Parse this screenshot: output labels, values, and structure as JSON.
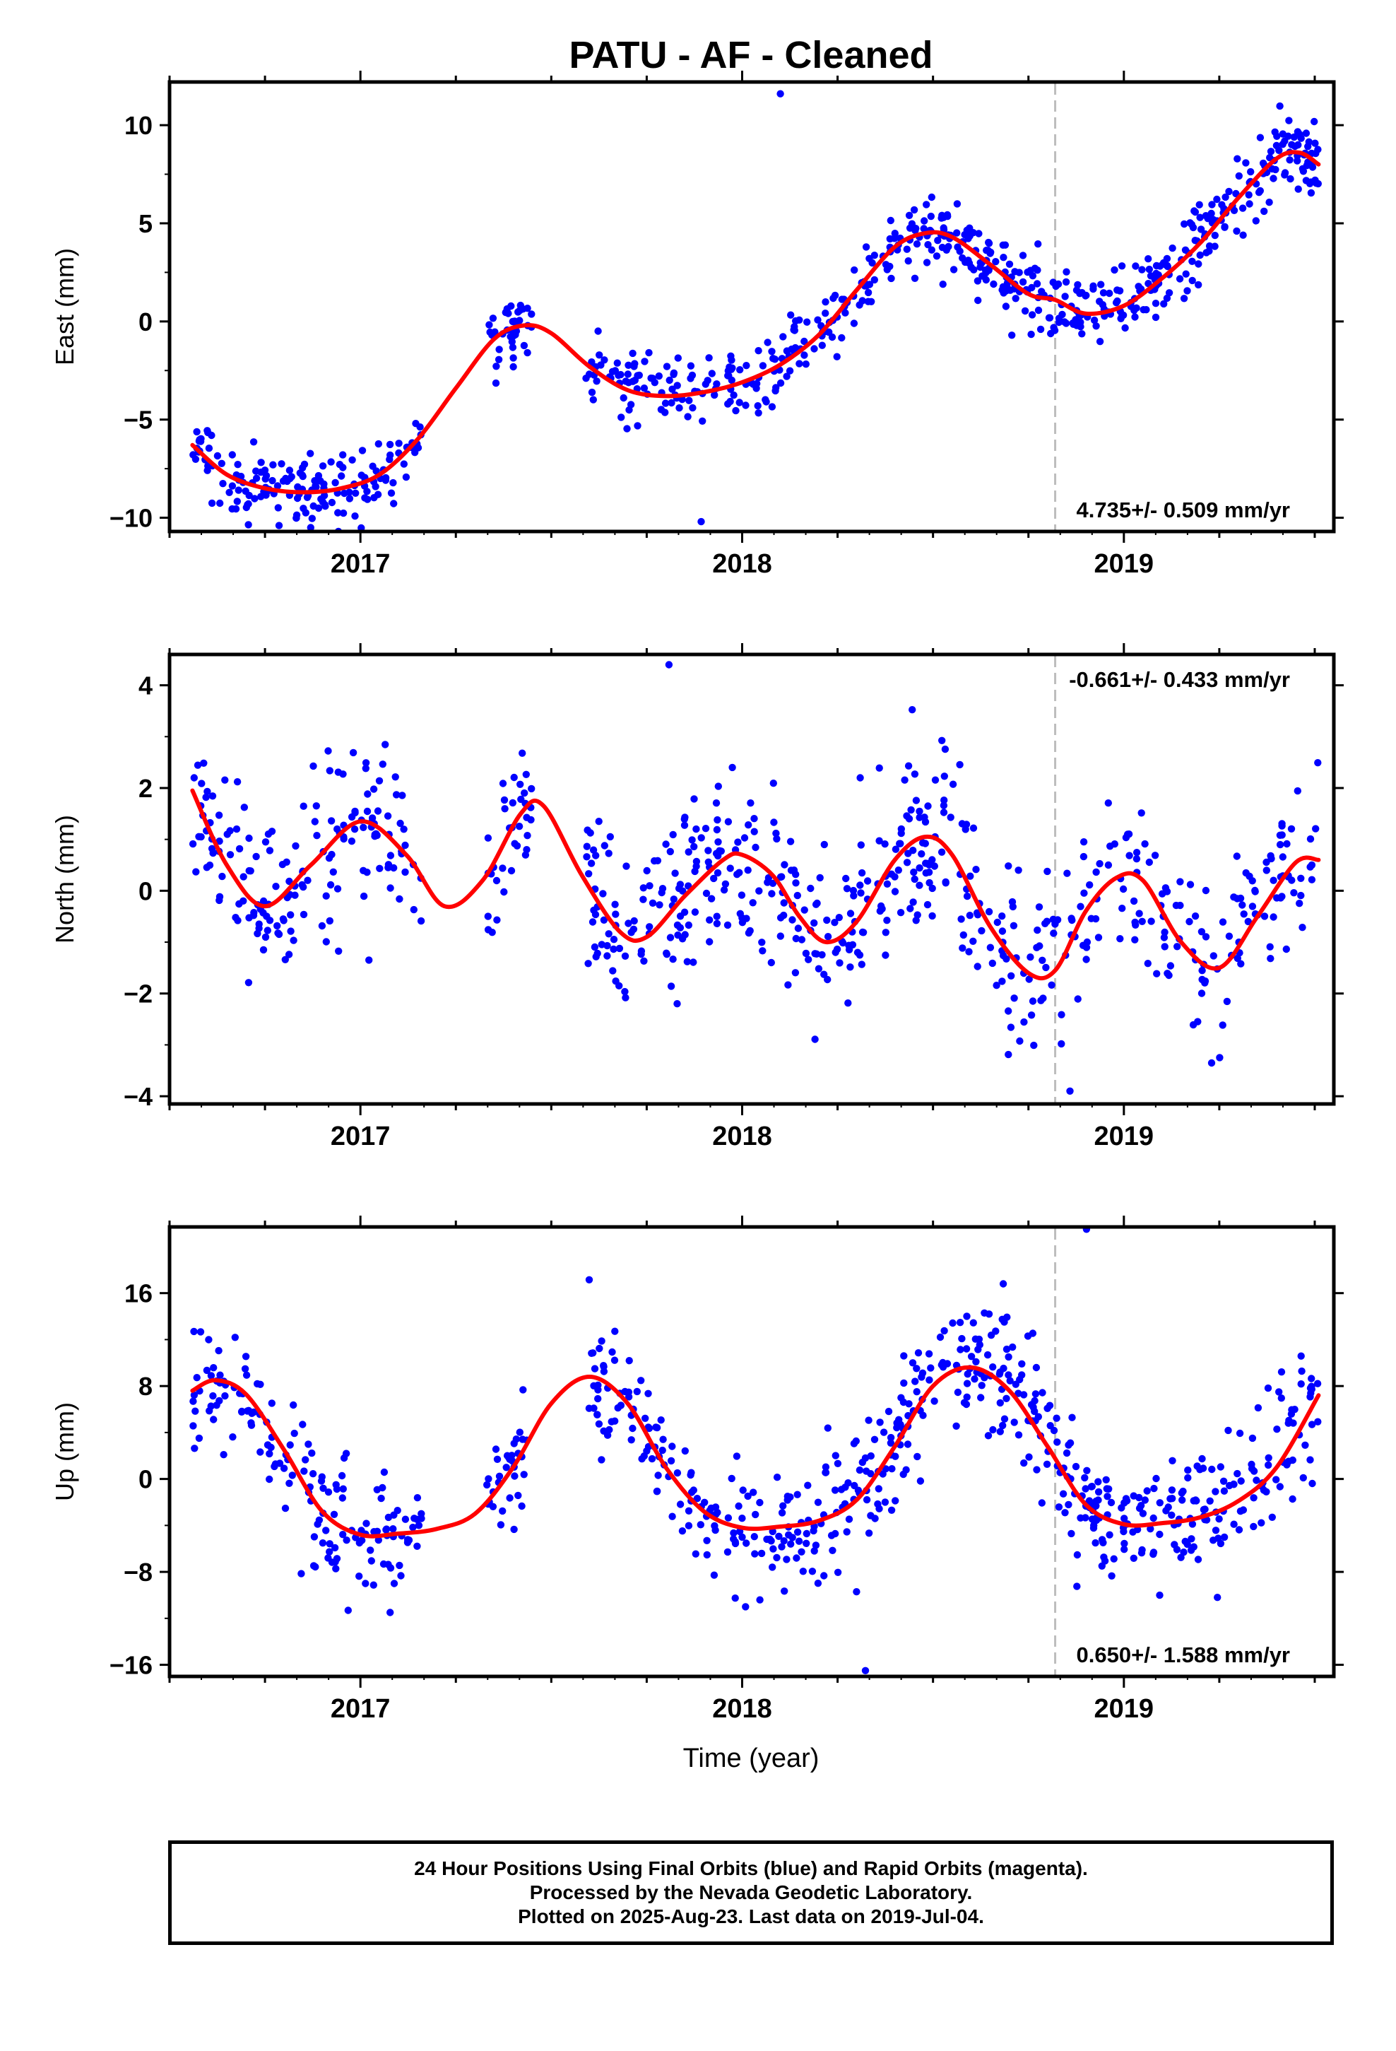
{
  "figure": {
    "title": "PATU  - AF - Cleaned",
    "xlabel": "Time (year)"
  },
  "chart_data": [
    {
      "type": "scatter",
      "ylabel": "East (mm)",
      "xlim": [
        2016.5,
        2019.55
      ],
      "ylim": [
        -10.7,
        12.2
      ],
      "xticks": [
        2017,
        2018,
        2019
      ],
      "xtick_labels": [
        "2017",
        "2018",
        "2019"
      ],
      "yticks": [
        -10,
        -5,
        0,
        5,
        10
      ],
      "ytick_labels": [
        "−10",
        "−5",
        "0",
        "5",
        "10"
      ],
      "rate_label": "4.735+/- 0.509 mm/yr",
      "rate_position": "bottom-right",
      "offset_line_x": 2018.82,
      "point_color": "#0000ff",
      "model_color": "#ff0000",
      "observation_segments": [
        [
          2016.56,
          2017.16
        ],
        [
          2017.33,
          2017.45
        ],
        [
          2017.59,
          2019.51
        ]
      ],
      "model_curve": {
        "x": [
          2016.56,
          2016.65,
          2016.75,
          2016.85,
          2016.95,
          2017.05,
          2017.15,
          2017.25,
          2017.35,
          2017.43,
          2017.5,
          2017.6,
          2017.7,
          2017.8,
          2017.9,
          2018.0,
          2018.1,
          2018.2,
          2018.3,
          2018.4,
          2018.48,
          2018.55,
          2018.65,
          2018.75,
          2018.82,
          2018.9,
          2019.0,
          2019.1,
          2019.2,
          2019.3,
          2019.4,
          2019.46,
          2019.51
        ],
        "y": [
          -6.3,
          -7.8,
          -8.5,
          -8.7,
          -8.5,
          -7.8,
          -6.0,
          -3.4,
          -0.9,
          -0.2,
          -0.6,
          -2.3,
          -3.5,
          -3.8,
          -3.6,
          -3.1,
          -2.2,
          -0.7,
          1.6,
          3.8,
          4.5,
          4.3,
          2.9,
          1.4,
          1.1,
          0.4,
          0.8,
          2.2,
          4.0,
          6.3,
          8.3,
          8.6,
          8.0
        ]
      },
      "scatter_model": {
        "n": 760,
        "noise_sd": 0.95,
        "extremes_y": [
          -10.2,
          11.6
        ]
      }
    },
    {
      "type": "scatter",
      "ylabel": "North (mm)",
      "xlim": [
        2016.5,
        2019.55
      ],
      "ylim": [
        -4.15,
        4.6
      ],
      "xticks": [
        2017,
        2018,
        2019
      ],
      "xtick_labels": [
        "2017",
        "2018",
        "2019"
      ],
      "yticks": [
        -4,
        -2,
        0,
        2,
        4
      ],
      "ytick_labels": [
        "−4",
        "−2",
        "0",
        "2",
        "4"
      ],
      "rate_label": "-0.661+/- 0.433 mm/yr",
      "rate_position": "top-right",
      "offset_line_x": 2018.82,
      "point_color": "#0000ff",
      "model_color": "#ff0000",
      "observation_segments": [
        [
          2016.56,
          2017.16
        ],
        [
          2017.33,
          2017.45
        ],
        [
          2017.59,
          2019.51
        ]
      ],
      "model_curve": {
        "x": [
          2016.56,
          2016.65,
          2016.75,
          2016.87,
          2017.0,
          2017.12,
          2017.22,
          2017.32,
          2017.42,
          2017.48,
          2017.58,
          2017.68,
          2017.75,
          2017.85,
          2017.95,
          2018.0,
          2018.08,
          2018.15,
          2018.22,
          2018.3,
          2018.4,
          2018.48,
          2018.55,
          2018.65,
          2018.75,
          2018.82,
          2018.9,
          2018.98,
          2019.05,
          2019.15,
          2019.25,
          2019.35,
          2019.45,
          2019.51
        ],
        "y": [
          1.95,
          0.5,
          -0.3,
          0.5,
          1.35,
          0.7,
          -0.3,
          0.2,
          1.5,
          1.65,
          0.3,
          -0.8,
          -0.9,
          -0.1,
          0.6,
          0.7,
          0.3,
          -0.5,
          -1.0,
          -0.6,
          0.6,
          1.05,
          0.7,
          -0.7,
          -1.6,
          -1.55,
          -0.4,
          0.25,
          0.2,
          -1.0,
          -1.5,
          -0.5,
          0.55,
          0.6
        ]
      },
      "scatter_model": {
        "n": 720,
        "noise_sd": 0.85,
        "extremes_y": [
          -3.9,
          4.4
        ]
      }
    },
    {
      "type": "scatter",
      "ylabel": "Up (mm)",
      "xlim": [
        2016.5,
        2019.55
      ],
      "ylim": [
        -17.0,
        21.7
      ],
      "xticks": [
        2017,
        2018,
        2019
      ],
      "xtick_labels": [
        "2017",
        "2018",
        "2019"
      ],
      "yticks": [
        -16,
        -8,
        0,
        8,
        16
      ],
      "ytick_labels": [
        "−16",
        "−8",
        "0",
        "8",
        "16"
      ],
      "rate_label": "0.650+/- 1.588 mm/yr",
      "rate_position": "bottom-right",
      "offset_line_x": 2018.82,
      "point_color": "#0000ff",
      "model_color": "#ff0000",
      "observation_segments": [
        [
          2016.56,
          2017.16
        ],
        [
          2017.33,
          2017.45
        ],
        [
          2017.59,
          2019.51
        ]
      ],
      "model_curve": {
        "x": [
          2016.56,
          2016.62,
          2016.7,
          2016.8,
          2016.9,
          2017.0,
          2017.1,
          2017.2,
          2017.3,
          2017.4,
          2017.5,
          2017.6,
          2017.7,
          2017.8,
          2017.9,
          2018.0,
          2018.1,
          2018.2,
          2018.3,
          2018.4,
          2018.5,
          2018.6,
          2018.7,
          2018.8,
          2018.9,
          2019.0,
          2019.1,
          2019.2,
          2019.3,
          2019.4,
          2019.51
        ],
        "y": [
          7.6,
          8.5,
          7.3,
          2.5,
          -2.8,
          -4.8,
          -4.7,
          -4.3,
          -3.0,
          1.0,
          6.5,
          8.8,
          6.5,
          1.0,
          -2.8,
          -4.2,
          -4.1,
          -3.6,
          -1.8,
          2.8,
          8.0,
          9.6,
          7.6,
          2.8,
          -2.2,
          -3.9,
          -3.8,
          -3.3,
          -1.9,
          1.0,
          7.2
        ]
      },
      "scatter_model": {
        "n": 740,
        "noise_sd": 2.8,
        "extremes_y": [
          -16.5,
          21.5
        ]
      }
    }
  ],
  "footer": {
    "lines": [
      "24 Hour Positions Using Final Orbits (blue) and Rapid Orbits (magenta).",
      "Processed by the Nevada Geodetic Laboratory.",
      "Plotted on 2025-Aug-23. Last data on 2019-Jul-04."
    ]
  }
}
